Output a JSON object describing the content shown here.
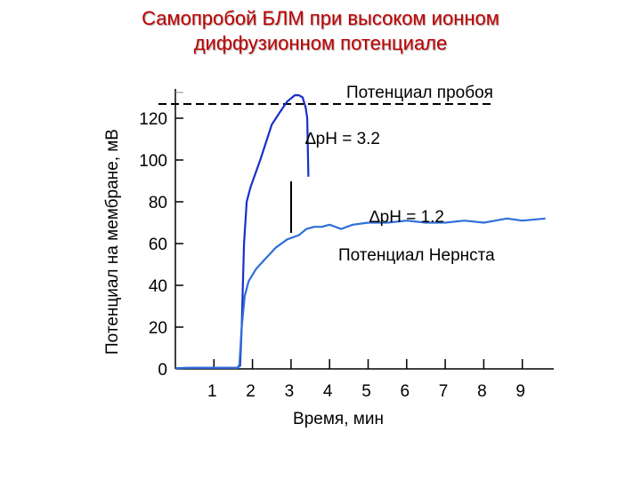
{
  "chart_data": {
    "type": "line",
    "title": [
      "Самопробой БЛМ при высоком ионном",
      "диффузионном потенциале"
    ],
    "xlabel": "Время, мин",
    "ylabel": "Потенциал на мембране, мВ",
    "x_ticks": [
      "1",
      "2",
      "3",
      "4",
      "5",
      "6",
      "7",
      "8",
      "9"
    ],
    "y_ticks": [
      "0",
      "20",
      "40",
      "60",
      "80",
      "100",
      "120"
    ],
    "xlim": [
      0,
      10
    ],
    "ylim": [
      0,
      135
    ],
    "breakdown_potential": {
      "label": "Потенциал пробоя",
      "value": 131
    },
    "annotations": {
      "dph_high": "∆pH = 3.2",
      "dph_low": "∆pH = 1.2",
      "nernst": "Потенциал Нернста"
    },
    "series": [
      {
        "color": "#1a2fc8",
        "x": [
          0.0,
          0.3,
          1.6,
          1.68,
          1.72,
          1.78,
          1.85,
          1.95,
          2.2,
          2.5,
          2.75,
          2.9,
          3.1,
          3.2,
          3.3,
          3.38,
          3.42,
          3.45
        ],
        "y": [
          0.3,
          0.5,
          0.5,
          1.5,
          20,
          60,
          80,
          87,
          100,
          117,
          124,
          128,
          131,
          131,
          130,
          125,
          120,
          92
        ]
      },
      {
        "color": "#2f6fd8",
        "x": [
          0.0,
          0.3,
          1.62,
          1.66,
          1.72,
          1.8,
          1.9,
          2.1,
          2.3,
          2.6,
          2.9,
          3.2,
          3.4,
          3.6,
          3.8,
          4.0,
          4.3,
          4.6,
          5.0,
          5.5,
          6.0,
          6.5,
          7.0,
          7.5,
          8.0,
          8.3,
          8.6,
          9.0,
          9.6
        ],
        "y": [
          0.3,
          0.5,
          0.5,
          2,
          20,
          35,
          42,
          48,
          52,
          58,
          62,
          64,
          67,
          68,
          68,
          69,
          67,
          69,
          70,
          70,
          71,
          70,
          70,
          71,
          70,
          71,
          72,
          71,
          72
        ]
      }
    ]
  }
}
